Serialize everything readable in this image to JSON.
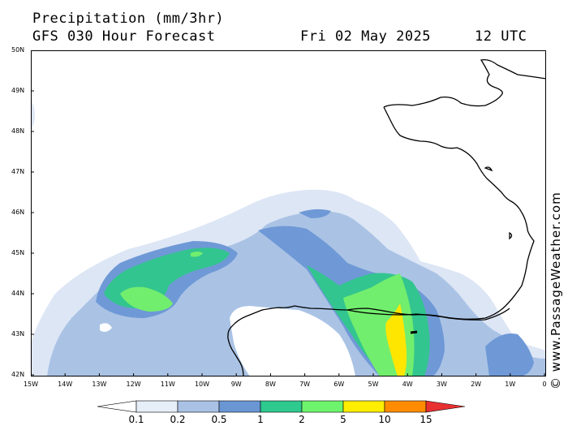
{
  "header": {
    "line1": "Precipitation (mm/3hr)",
    "line2": "GFS 030 Hour Forecast",
    "date": "Fri 02 May 2025",
    "time": "12 UTC"
  },
  "credit": "© www.PassageWeather.com",
  "axes": {
    "lat_labels": [
      "50N",
      "49N",
      "48N",
      "47N",
      "46N",
      "45N",
      "44N",
      "43N",
      "42N"
    ],
    "lon_labels": [
      "15W",
      "14W",
      "13W",
      "12W",
      "11W",
      "10W",
      "9W",
      "8W",
      "7W",
      "6W",
      "5W",
      "4W",
      "3W",
      "2W",
      "1W",
      "0"
    ],
    "lat_range": [
      42,
      50
    ],
    "lon_range": [
      -15,
      0
    ]
  },
  "legend": {
    "labels": [
      "0.1",
      "0.2",
      "0.5",
      "1",
      "2",
      "5",
      "10",
      "15"
    ],
    "colors": [
      "#ffffff",
      "#e6eef8",
      "#a9c2e4",
      "#6a96d4",
      "#2ec98e",
      "#6ef46c",
      "#ffee00",
      "#ff8c00",
      "#e83030"
    ]
  },
  "precip_colors": {
    "c02": "#dde6f5",
    "c05": "#aac3e5",
    "c1": "#6f99d6",
    "c2": "#33c58f",
    "c5": "#72ee6e",
    "c10": "#ffe600"
  }
}
